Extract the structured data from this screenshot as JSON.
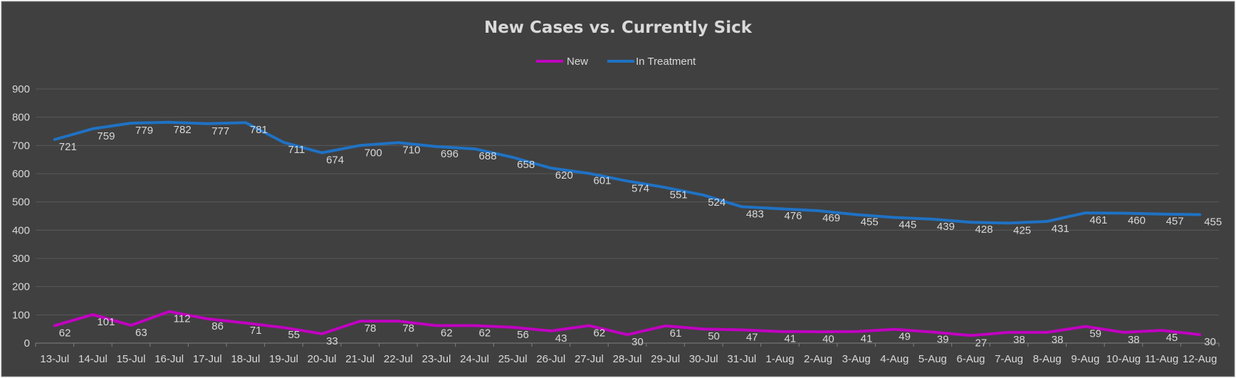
{
  "chart_data": {
    "type": "line",
    "title": "New Cases vs. Currently Sick",
    "xlabel": "",
    "ylabel": "",
    "ylim": [
      0,
      900
    ],
    "yticks": [
      0,
      100,
      200,
      300,
      400,
      500,
      600,
      700,
      800,
      900
    ],
    "grid": true,
    "legend_position": "top-center",
    "background_color": "#404040",
    "categories": [
      "13-Jul",
      "14-Jul",
      "15-Jul",
      "16-Jul",
      "17-Jul",
      "18-Jul",
      "19-Jul",
      "20-Jul",
      "21-Jul",
      "22-Jul",
      "23-Jul",
      "24-Jul",
      "25-Jul",
      "26-Jul",
      "27-Jul",
      "28-Jul",
      "29-Jul",
      "30-Jul",
      "31-Jul",
      "1-Aug",
      "2-Aug",
      "3-Aug",
      "4-Aug",
      "5-Aug",
      "6-Aug",
      "7-Aug",
      "8-Aug",
      "9-Aug",
      "10-Aug",
      "11-Aug",
      "12-Aug"
    ],
    "series": [
      {
        "name": "New",
        "color": "#c000c0",
        "values": [
          62,
          101,
          63,
          112,
          86,
          71,
          55,
          33,
          78,
          78,
          62,
          62,
          56,
          43,
          62,
          30,
          61,
          50,
          47,
          41,
          40,
          41,
          49,
          39,
          27,
          38,
          38,
          59,
          38,
          45,
          30
        ]
      },
      {
        "name": "In Treatment",
        "color": "#1f72c4",
        "values": [
          721,
          759,
          779,
          782,
          777,
          781,
          711,
          674,
          700,
          710,
          696,
          688,
          658,
          620,
          601,
          574,
          551,
          524,
          483,
          476,
          469,
          455,
          445,
          439,
          428,
          425,
          431,
          461,
          460,
          457,
          455
        ]
      }
    ]
  }
}
